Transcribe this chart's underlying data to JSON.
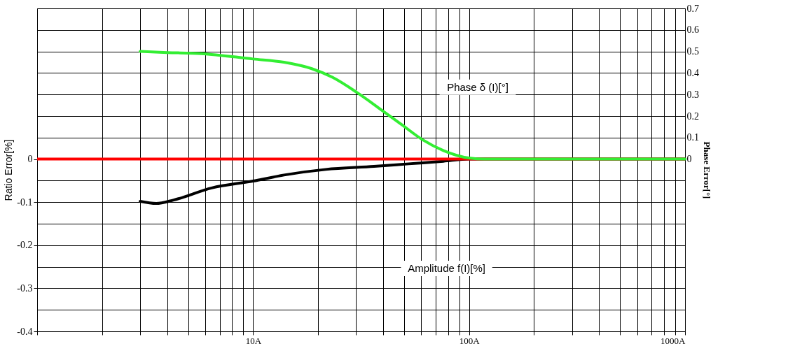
{
  "chart_data": {
    "type": "line",
    "ylabel": "Ratio Error[%]",
    "y2label": "Phase Error[°]",
    "log": "x",
    "xlim": [
      1,
      1000
    ],
    "xticks": [
      {
        "value": 1,
        "label": null
      },
      {
        "value": 2,
        "label": null
      },
      {
        "value": 3,
        "label": null
      },
      {
        "value": 4,
        "label": null
      },
      {
        "value": 5,
        "label": null
      },
      {
        "value": 6,
        "label": null
      },
      {
        "value": 7,
        "label": null
      },
      {
        "value": 8,
        "label": null
      },
      {
        "value": 9,
        "label": null
      },
      {
        "value": 10,
        "label": "10A"
      },
      {
        "value": 20,
        "label": null
      },
      {
        "value": 30,
        "label": null
      },
      {
        "value": 40,
        "label": null
      },
      {
        "value": 50,
        "label": null
      },
      {
        "value": 60,
        "label": null
      },
      {
        "value": 70,
        "label": null
      },
      {
        "value": 80,
        "label": null
      },
      {
        "value": 90,
        "label": null
      },
      {
        "value": 100,
        "label": "100A"
      },
      {
        "value": 200,
        "label": null
      },
      {
        "value": 300,
        "label": null
      },
      {
        "value": 400,
        "label": null
      },
      {
        "value": 500,
        "label": null
      },
      {
        "value": 600,
        "label": null
      },
      {
        "value": 700,
        "label": null
      },
      {
        "value": 800,
        "label": null
      },
      {
        "value": 900,
        "label": null
      },
      {
        "value": 1000,
        "label": "1000A"
      }
    ],
    "ylim": [
      -0.4,
      0.35
    ],
    "yticks": [
      -0.4,
      -0.3,
      -0.2,
      -0.1,
      0
    ],
    "y2lim": [
      -0.8,
      0.7
    ],
    "y2ticks": [
      {
        "value": -0.7,
        "label": null
      },
      {
        "value": -0.5,
        "label": null
      },
      {
        "value": -0.3,
        "label": null
      },
      {
        "value": -0.1,
        "label": null
      },
      0,
      0.1,
      0.2,
      0.3,
      0.4,
      0.5,
      0.6,
      0.7
    ],
    "grid": true,
    "line_style": "solid",
    "ref_lines": [
      {
        "axis": "y",
        "value": 0,
        "color": "#ff0000"
      }
    ],
    "series": [
      {
        "color": "#000000",
        "x": [
          3,
          3.56,
          4.29,
          6.43,
          10,
          13.9,
          21.7,
          36.3,
          52.5,
          76,
          100,
          1000
        ],
        "values": [
          -0.098,
          -0.103,
          -0.095,
          -0.067,
          -0.051,
          -0.037,
          -0.024,
          -0.017,
          -0.011,
          -0.005,
          0,
          0
        ]
      },
      {
        "color": "#33ee33",
        "axis": "y2",
        "x": [
          3,
          4,
          5.76,
          10,
          13.9,
          18.7,
          23.3,
          30.2,
          39.1,
          48.8,
          60.9,
          76,
          100,
          118,
          1000
        ],
        "values": [
          0.5,
          0.495,
          0.49,
          0.465,
          0.45,
          0.42,
          0.38,
          0.31,
          0.23,
          0.16,
          0.09,
          0.04,
          0.005,
          0,
          0
        ]
      }
    ],
    "annotations": [
      "Phase δ (I)[°]",
      "Amplitude f(I)[%]"
    ]
  }
}
